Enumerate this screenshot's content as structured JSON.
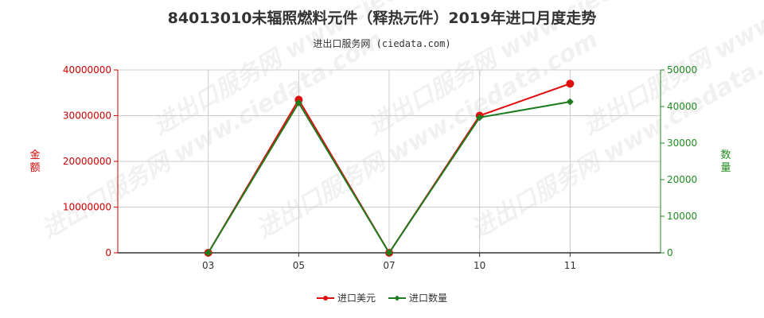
{
  "title": "84013010未辐照燃料元件（释热元件）2019年进口月度走势",
  "subtitle": "进出口服务网 (ciedata.com)",
  "watermark": "进出口服务网 www.ciedata.com",
  "colors": {
    "left_axis": "#d00000",
    "right_axis": "#228b22",
    "series_amount": "#e01010",
    "series_qty": "#1e7b1e",
    "grid": "#cccccc"
  },
  "chart_data": {
    "type": "line",
    "categories": [
      "03",
      "05",
      "07",
      "10",
      "11"
    ],
    "left_axis": {
      "label": "金额",
      "range": [
        0,
        40000000
      ],
      "ticks": [
        "0",
        "10000000",
        "20000000",
        "30000000",
        "40000000"
      ]
    },
    "right_axis": {
      "label": "数量",
      "range": [
        0,
        50000
      ],
      "ticks": [
        "0",
        "10000",
        "20000",
        "30000",
        "40000",
        "50000"
      ]
    },
    "series": [
      {
        "name": "进口美元",
        "axis": "left",
        "marker": "circle",
        "values": [
          0,
          33500000,
          0,
          30000000,
          37000000
        ]
      },
      {
        "name": "进口数量",
        "axis": "right",
        "marker": "diamond",
        "values": [
          0,
          41000,
          0,
          37000,
          41300
        ]
      }
    ],
    "grid": true,
    "legend": "bottom-center"
  }
}
